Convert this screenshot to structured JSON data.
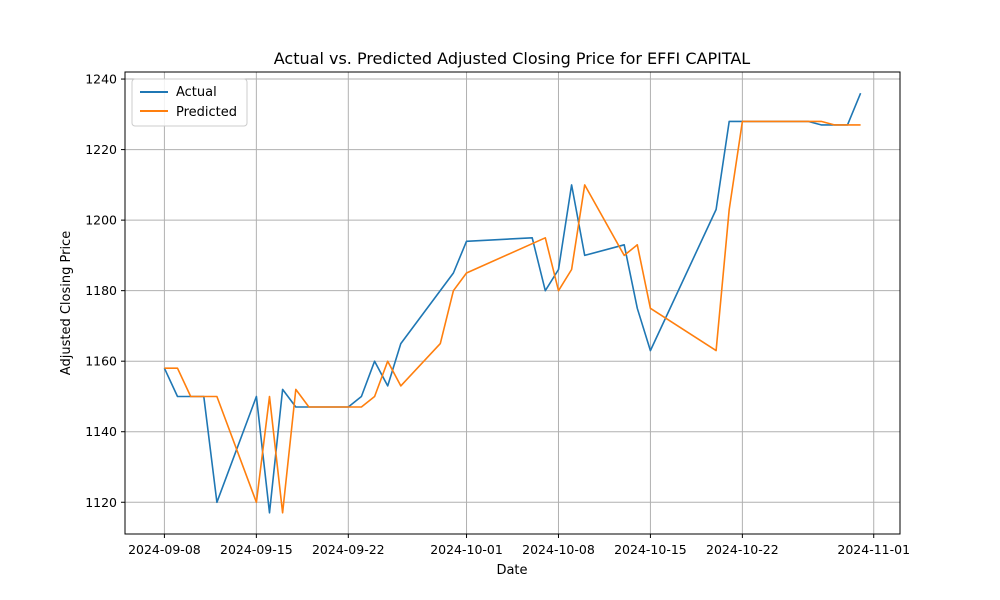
{
  "chart_data": {
    "type": "line",
    "title": "Actual vs. Predicted Adjusted Closing Price for EFFI CAPITAL",
    "xlabel": "Date",
    "ylabel": "Adjusted Closing Price",
    "x_tick_labels": [
      "2024-09-08",
      "2024-09-15",
      "2024-09-22",
      "2024-10-01",
      "2024-10-08",
      "2024-10-15",
      "2024-10-22",
      "2024-11-01"
    ],
    "y_tick_labels": [
      "1120",
      "1140",
      "1160",
      "1180",
      "1200",
      "1220",
      "1240"
    ],
    "y_ticks": [
      1120,
      1140,
      1160,
      1180,
      1200,
      1220,
      1240
    ],
    "xlim": [
      "2024-09-05",
      "2024-11-03"
    ],
    "ylim": [
      1111,
      1242
    ],
    "grid": true,
    "legend_position": "top-left",
    "colors": {
      "Actual": "#1f77b4",
      "Predicted": "#ff7f0e"
    },
    "series": [
      {
        "name": "Actual",
        "x": [
          "2024-09-08",
          "2024-09-09",
          "2024-09-10",
          "2024-09-11",
          "2024-09-12",
          "2024-09-15",
          "2024-09-16",
          "2024-09-17",
          "2024-09-18",
          "2024-09-19",
          "2024-09-22",
          "2024-09-23",
          "2024-09-24",
          "2024-09-25",
          "2024-09-26",
          "2024-09-30",
          "2024-10-01",
          "2024-10-06",
          "2024-10-07",
          "2024-10-08",
          "2024-10-09",
          "2024-10-10",
          "2024-10-13",
          "2024-10-14",
          "2024-10-15",
          "2024-10-20",
          "2024-10-21",
          "2024-10-22",
          "2024-10-27",
          "2024-10-28",
          "2024-10-29",
          "2024-10-30",
          "2024-10-31"
        ],
        "values": [
          1158,
          1150,
          1150,
          1150,
          1120,
          1150,
          1117,
          1152,
          1147,
          1147,
          1147,
          1150,
          1160,
          1153,
          1165,
          1185,
          1194,
          1195,
          1180,
          1186,
          1210,
          1190,
          1193,
          1175,
          1163,
          1203,
          1228,
          1228,
          1228,
          1227,
          1227,
          1227,
          1236
        ]
      },
      {
        "name": "Predicted",
        "x": [
          "2024-09-08",
          "2024-09-09",
          "2024-09-10",
          "2024-09-11",
          "2024-09-12",
          "2024-09-15",
          "2024-09-16",
          "2024-09-17",
          "2024-09-18",
          "2024-09-19",
          "2024-09-22",
          "2024-09-23",
          "2024-09-24",
          "2024-09-25",
          "2024-09-26",
          "2024-09-29",
          "2024-09-30",
          "2024-10-01",
          "2024-10-07",
          "2024-10-08",
          "2024-10-09",
          "2024-10-10",
          "2024-10-13",
          "2024-10-14",
          "2024-10-15",
          "2024-10-20",
          "2024-10-21",
          "2024-10-22",
          "2024-10-28",
          "2024-10-29",
          "2024-10-30",
          "2024-10-31"
        ],
        "values": [
          1158,
          1158,
          1150,
          1150,
          1150,
          1120,
          1150,
          1117,
          1152,
          1147,
          1147,
          1147,
          1150,
          1160,
          1153,
          1165,
          1180,
          1185,
          1195,
          1180,
          1186,
          1210,
          1190,
          1193,
          1175,
          1163,
          1203,
          1228,
          1228,
          1227,
          1227,
          1227
        ]
      }
    ]
  }
}
